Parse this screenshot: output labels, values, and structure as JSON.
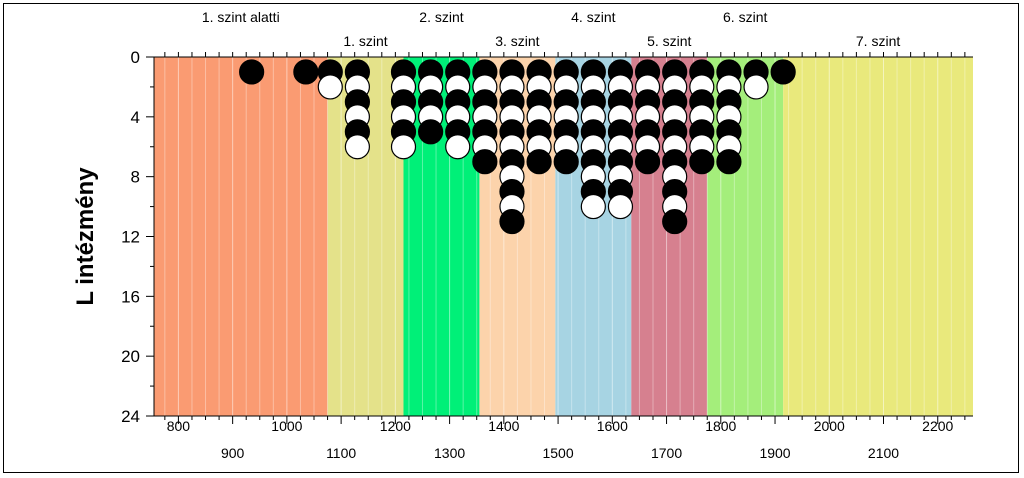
{
  "chart_data": {
    "type": "scatter",
    "ylabel": "L intézmény",
    "xlim": [
      755,
      2265
    ],
    "ylim": [
      0,
      24
    ],
    "y_inverted": true,
    "x_ticks": [
      800,
      900,
      1000,
      1100,
      1200,
      1300,
      1400,
      1500,
      1600,
      1700,
      1800,
      1900,
      2000,
      2100,
      2200
    ],
    "y_ticks": [
      0,
      4,
      8,
      12,
      16,
      20,
      24
    ],
    "bands": [
      {
        "label": "1. szint alatti",
        "from": 755,
        "to": 1075,
        "color": "#FA9B72"
      },
      {
        "label": "1. szint",
        "from": 1075,
        "to": 1215,
        "color": "#E4E28A"
      },
      {
        "label": "2. szint",
        "from": 1215,
        "to": 1355,
        "color": "#00F078"
      },
      {
        "label": "3. szint",
        "from": 1355,
        "to": 1495,
        "color": "#FCD3AB"
      },
      {
        "label": "4. szint",
        "from": 1495,
        "to": 1635,
        "color": "#A7D4E3"
      },
      {
        "label": "5. szint",
        "from": 1635,
        "to": 1775,
        "color": "#D6808F"
      },
      {
        "label": "6. szint",
        "from": 1775,
        "to": 1915,
        "color": "#A4EE7B"
      },
      {
        "label": "7. szint",
        "from": 1915,
        "to": 2265,
        "color": "#E9E97C"
      }
    ],
    "series": [
      {
        "name": "",
        "color": "#000000",
        "points": [
          [
            935,
            1
          ],
          [
            1035,
            1
          ],
          [
            1080,
            1
          ],
          [
            1130,
            1
          ],
          [
            1130,
            3
          ],
          [
            1130,
            5
          ],
          [
            1215,
            1
          ],
          [
            1215,
            3
          ],
          [
            1215,
            5
          ],
          [
            1265,
            1
          ],
          [
            1265,
            3
          ],
          [
            1265,
            5
          ],
          [
            1315,
            1
          ],
          [
            1315,
            3
          ],
          [
            1315,
            5
          ],
          [
            1365,
            1
          ],
          [
            1365,
            3
          ],
          [
            1365,
            5
          ],
          [
            1365,
            7
          ],
          [
            1415,
            1
          ],
          [
            1415,
            3
          ],
          [
            1415,
            5
          ],
          [
            1415,
            7
          ],
          [
            1415,
            9
          ],
          [
            1415,
            11
          ],
          [
            1465,
            1
          ],
          [
            1465,
            3
          ],
          [
            1465,
            5
          ],
          [
            1465,
            7
          ],
          [
            1515,
            1
          ],
          [
            1515,
            3
          ],
          [
            1515,
            5
          ],
          [
            1515,
            7
          ],
          [
            1565,
            1
          ],
          [
            1565,
            3
          ],
          [
            1565,
            5
          ],
          [
            1565,
            7
          ],
          [
            1565,
            9
          ],
          [
            1615,
            1
          ],
          [
            1615,
            3
          ],
          [
            1615,
            5
          ],
          [
            1615,
            7
          ],
          [
            1615,
            9
          ],
          [
            1665,
            1
          ],
          [
            1665,
            3
          ],
          [
            1665,
            5
          ],
          [
            1665,
            7
          ],
          [
            1715,
            1
          ],
          [
            1715,
            3
          ],
          [
            1715,
            5
          ],
          [
            1715,
            7
          ],
          [
            1715,
            9
          ],
          [
            1715,
            11
          ],
          [
            1765,
            1
          ],
          [
            1765,
            3
          ],
          [
            1765,
            5
          ],
          [
            1765,
            7
          ],
          [
            1815,
            1
          ],
          [
            1815,
            3
          ],
          [
            1815,
            5
          ],
          [
            1815,
            7
          ],
          [
            1865,
            1
          ],
          [
            1915,
            1
          ]
        ]
      },
      {
        "name": "",
        "color": "#ffffff",
        "points": [
          [
            1080,
            2
          ],
          [
            1130,
            2
          ],
          [
            1130,
            4
          ],
          [
            1130,
            6
          ],
          [
            1215,
            2
          ],
          [
            1215,
            4
          ],
          [
            1215,
            6
          ],
          [
            1265,
            2
          ],
          [
            1265,
            4
          ],
          [
            1315,
            2
          ],
          [
            1315,
            4
          ],
          [
            1315,
            6
          ],
          [
            1365,
            2
          ],
          [
            1365,
            4
          ],
          [
            1365,
            6
          ],
          [
            1415,
            2
          ],
          [
            1415,
            4
          ],
          [
            1415,
            6
          ],
          [
            1415,
            8
          ],
          [
            1415,
            10
          ],
          [
            1465,
            2
          ],
          [
            1465,
            4
          ],
          [
            1465,
            6
          ],
          [
            1515,
            2
          ],
          [
            1515,
            4
          ],
          [
            1515,
            6
          ],
          [
            1565,
            2
          ],
          [
            1565,
            4
          ],
          [
            1565,
            6
          ],
          [
            1565,
            8
          ],
          [
            1565,
            10
          ],
          [
            1615,
            2
          ],
          [
            1615,
            4
          ],
          [
            1615,
            6
          ],
          [
            1615,
            8
          ],
          [
            1615,
            10
          ],
          [
            1665,
            2
          ],
          [
            1665,
            4
          ],
          [
            1665,
            6
          ],
          [
            1715,
            2
          ],
          [
            1715,
            4
          ],
          [
            1715,
            6
          ],
          [
            1715,
            8
          ],
          [
            1715,
            10
          ],
          [
            1765,
            2
          ],
          [
            1765,
            4
          ],
          [
            1765,
            6
          ],
          [
            1815,
            2
          ],
          [
            1815,
            4
          ],
          [
            1815,
            6
          ],
          [
            1865,
            2
          ]
        ]
      }
    ]
  }
}
